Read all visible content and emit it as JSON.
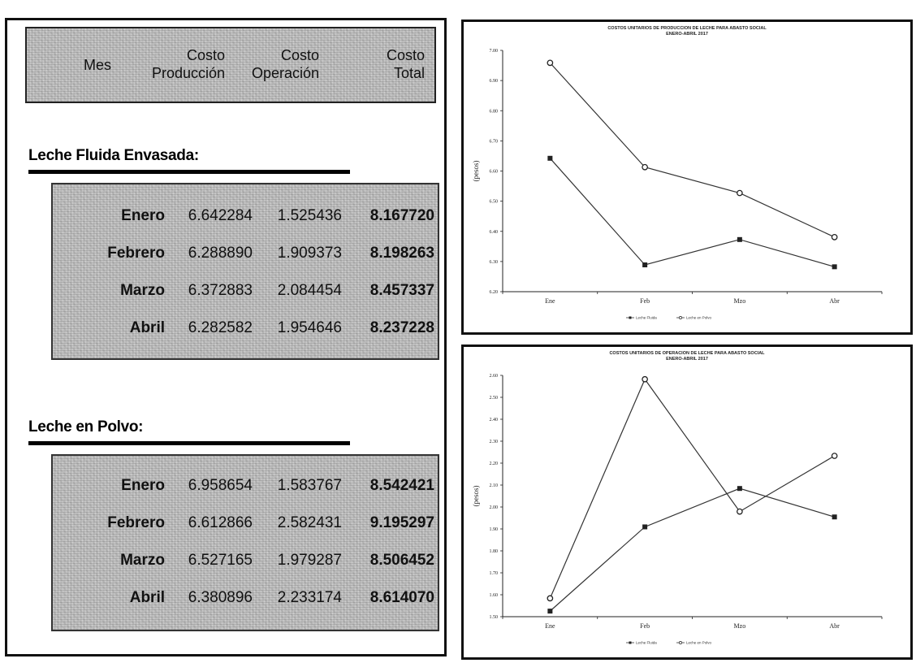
{
  "table": {
    "headers": {
      "mes": "Mes",
      "costo_produccion": [
        "Costo",
        "Producción"
      ],
      "costo_operacion": [
        "Costo",
        "Operación"
      ],
      "costo_total": [
        "Costo",
        "Total"
      ]
    },
    "sections": [
      {
        "title": "Leche Fluida Envasada:",
        "rows": [
          {
            "mes": "Enero",
            "produccion": "6.642284",
            "operacion": "1.525436",
            "total": "8.167720"
          },
          {
            "mes": "Febrero",
            "produccion": "6.288890",
            "operacion": "1.909373",
            "total": "8.198263"
          },
          {
            "mes": "Marzo",
            "produccion": "6.372883",
            "operacion": "2.084454",
            "total": "8.457337"
          },
          {
            "mes": "Abril",
            "produccion": "6.282582",
            "operacion": "1.954646",
            "total": "8.237228"
          }
        ]
      },
      {
        "title": "Leche en Polvo:",
        "rows": [
          {
            "mes": "Enero",
            "produccion": "6.958654",
            "operacion": "1.583767",
            "total": "8.542421"
          },
          {
            "mes": "Febrero",
            "produccion": "6.612866",
            "operacion": "2.582431",
            "total": "9.195297"
          },
          {
            "mes": "Marzo",
            "produccion": "6.527165",
            "operacion": "1.979287",
            "total": "8.506452"
          },
          {
            "mes": "Abril",
            "produccion": "6.380896",
            "operacion": "2.233174",
            "total": "8.614070"
          }
        ]
      }
    ]
  },
  "chart_data": [
    {
      "type": "line",
      "title": [
        "COSTOS UNITARIOS DE PRODUCCION DE LECHE PARA ABASTO SOCIAL",
        "ENERO-ABRIL 2017"
      ],
      "categories": [
        "Ene",
        "Feb",
        "Mzo",
        "Abr"
      ],
      "ylabel": "(pesos)",
      "ylim": [
        6.2,
        7.0
      ],
      "yticks": [
        "6.20",
        "6.30",
        "6.40",
        "6.50",
        "6.60",
        "6.70",
        "6.80",
        "6.90",
        "7.00"
      ],
      "grid": false,
      "legend_position": "bottom",
      "series": [
        {
          "name": "Leche Fluida",
          "marker": "square",
          "values": [
            6.642284,
            6.28889,
            6.372883,
            6.282582
          ]
        },
        {
          "name": "Leche en Polvo",
          "marker": "circle",
          "values": [
            6.958654,
            6.612866,
            6.527165,
            6.380896
          ]
        }
      ]
    },
    {
      "type": "line",
      "title": [
        "COSTOS UNITARIOS DE OPERACION DE LECHE PARA ABASTO SOCIAL",
        "ENERO-ABRIL 2017"
      ],
      "categories": [
        "Ene",
        "Feb",
        "Mzo",
        "Abr"
      ],
      "ylabel": "(pesos)",
      "ylim": [
        1.5,
        2.6
      ],
      "yticks": [
        "1.50",
        "1.60",
        "1.70",
        "1.80",
        "1.90",
        "2.00",
        "2.10",
        "2.20",
        "2.30",
        "2.40",
        "2.50",
        "2.60"
      ],
      "grid": false,
      "legend_position": "bottom",
      "series": [
        {
          "name": "Leche Fluida",
          "marker": "square",
          "values": [
            1.525436,
            1.909373,
            2.084454,
            1.954646
          ]
        },
        {
          "name": "Leche en Polvo",
          "marker": "circle",
          "values": [
            1.583767,
            2.582431,
            1.979287,
            2.233174
          ]
        }
      ]
    }
  ]
}
